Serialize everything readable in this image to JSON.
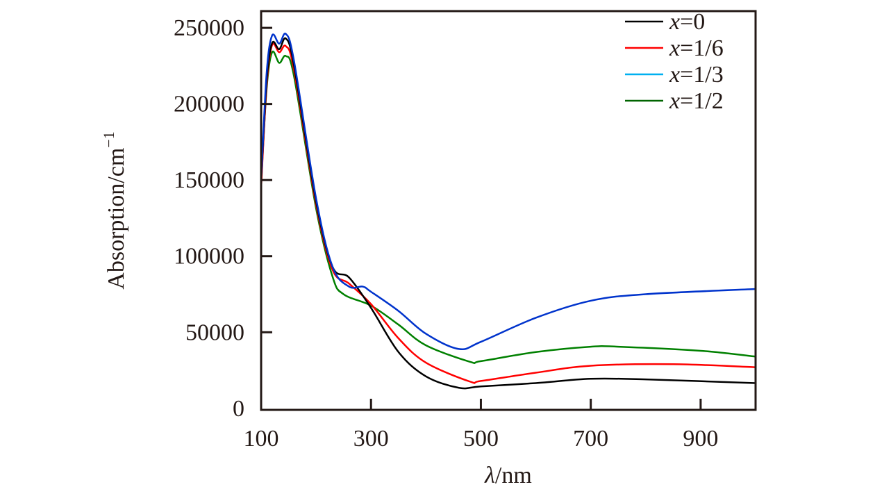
{
  "chart_data": {
    "type": "line",
    "xlabel_italic": "λ",
    "xlabel_rest": "/nm",
    "ylabel": "Absorption/cm",
    "ylabel_sup": "−1",
    "xlim": [
      100,
      1000
    ],
    "ylim": [
      -1000,
      261000
    ],
    "xticks": [
      100,
      300,
      500,
      700,
      900
    ],
    "yticks": [
      0,
      50000,
      100000,
      150000,
      200000,
      250000
    ],
    "grid": false,
    "legend_placement": "top-right",
    "series": [
      {
        "name_var": "x",
        "name_val": "=0",
        "color": "#000000",
        "legend_color": "#000000",
        "x": [
          100,
          110,
          120,
          133,
          145,
          160,
          200,
          230,
          260,
          300,
          350,
          400,
          460,
          500,
          600,
          700,
          800,
          1000
        ],
        "y": [
          150000,
          215000,
          240000,
          236000,
          243000,
          225000,
          136000,
          93000,
          86000,
          66000,
          37000,
          21000,
          13500,
          14400,
          16600,
          19400,
          19000,
          16600
        ]
      },
      {
        "name_var": "x",
        "name_val": "=1/6",
        "color": "#ff0000",
        "legend_color": "#ff0000",
        "x": [
          100,
          110,
          120,
          133,
          145,
          160,
          200,
          230,
          260,
          300,
          350,
          400,
          480,
          500,
          600,
          700,
          850,
          1000
        ],
        "y": [
          145000,
          212000,
          238700,
          234000,
          238000,
          222000,
          134000,
          91000,
          82000,
          68500,
          46000,
          30000,
          17600,
          18000,
          23400,
          28000,
          29000,
          27000
        ]
      },
      {
        "name_var": "x",
        "name_val": "=1/3",
        "color": "#0033cc",
        "legend_color": "#00b0f0",
        "x": [
          100,
          110,
          120,
          133,
          145,
          160,
          200,
          230,
          260,
          285,
          300,
          350,
          400,
          460,
          500,
          600,
          700,
          800,
          1000
        ],
        "y": [
          150000,
          220000,
          245000,
          239600,
          246000,
          228000,
          138000,
          93000,
          80000,
          80000,
          76600,
          64000,
          49000,
          39000,
          43700,
          59500,
          70700,
          75000,
          78400
        ]
      },
      {
        "name_var": "x",
        "name_val": "=1/2",
        "color": "#008000",
        "legend_color": "#006400",
        "x": [
          100,
          110,
          120,
          133,
          145,
          160,
          200,
          230,
          250,
          300,
          350,
          400,
          480,
          500,
          600,
          700,
          750,
          900,
          1000
        ],
        "y": [
          148000,
          210000,
          234000,
          227000,
          231500,
          218000,
          131500,
          86500,
          75000,
          67500,
          55000,
          41400,
          30600,
          31000,
          37000,
          40500,
          40500,
          37800,
          34000
        ]
      }
    ]
  }
}
